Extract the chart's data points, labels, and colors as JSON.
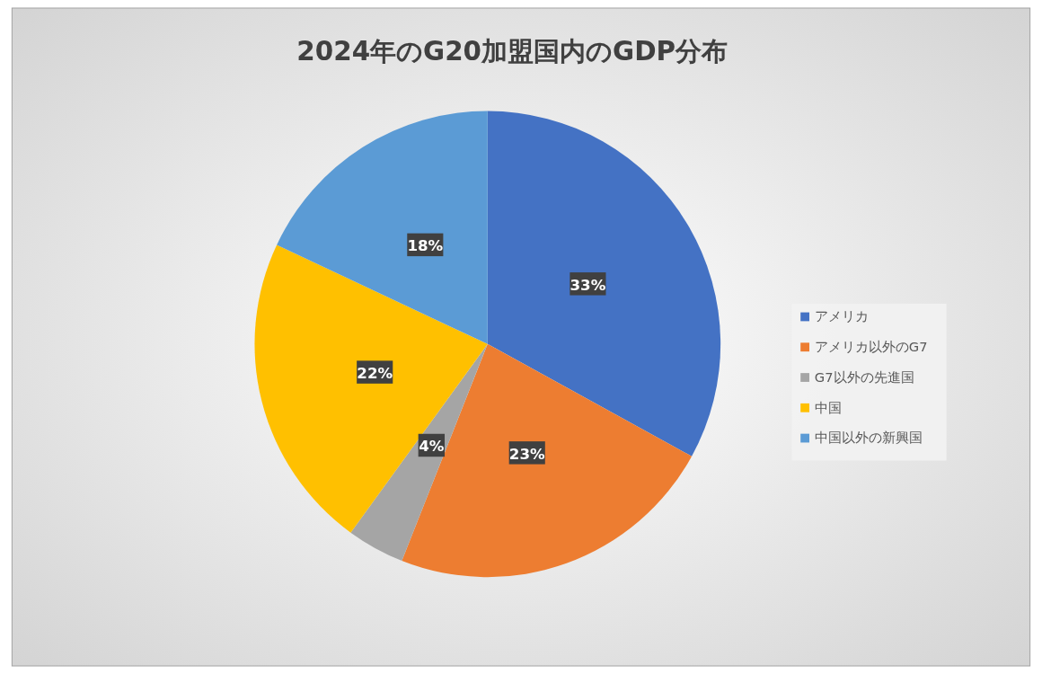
{
  "chart_data": {
    "type": "pie",
    "title": "2024年のG20加盟国内のGDP分布",
    "categories": [
      "アメリカ",
      "アメリカ以外のG7",
      "G7以外の先進国",
      "中国",
      "中国以外の新興国"
    ],
    "values": [
      33,
      23,
      4,
      22,
      18
    ],
    "colors": [
      "#4472c4",
      "#ed7d31",
      "#a5a5a5",
      "#ffc000",
      "#5b9bd5"
    ],
    "value_labels": [
      "33%",
      "23%",
      "4%",
      "22%",
      "18%"
    ],
    "legend": "right"
  }
}
